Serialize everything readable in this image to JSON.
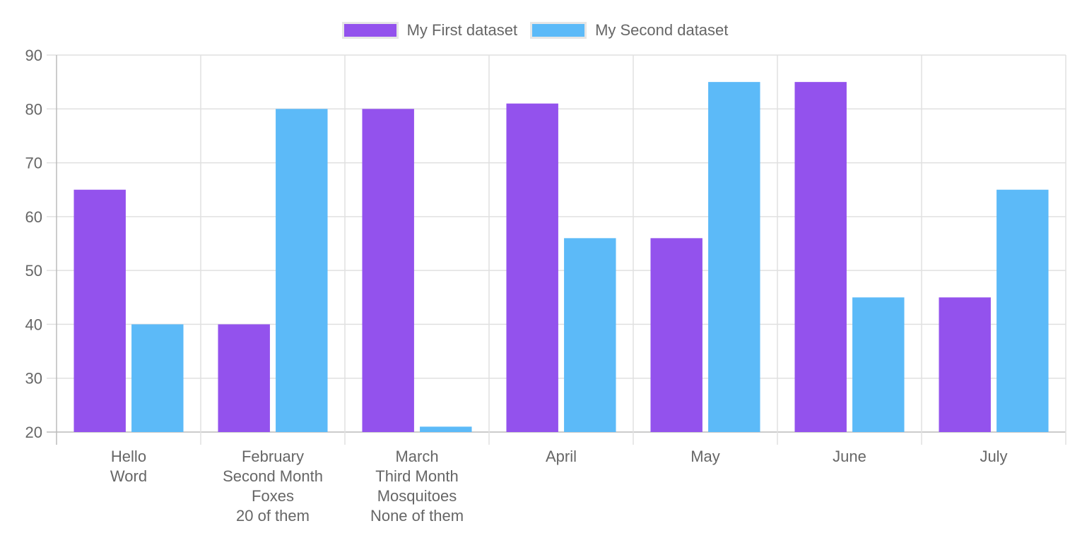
{
  "chart_data": {
    "type": "bar",
    "categories": [
      [
        "Hello",
        "Word"
      ],
      [
        "February",
        "Second Month",
        "Foxes",
        "20 of them"
      ],
      [
        "March",
        "Third Month",
        "Mosquitoes",
        "None of them"
      ],
      [
        "April"
      ],
      [
        "May"
      ],
      [
        "June"
      ],
      [
        "July"
      ]
    ],
    "series": [
      {
        "name": "My First dataset",
        "color": "#9352ed",
        "values": [
          65,
          40,
          80,
          81,
          56,
          85,
          45
        ]
      },
      {
        "name": "My Second dataset",
        "color": "#5cbaf8",
        "values": [
          40,
          80,
          21,
          56,
          85,
          45,
          65
        ]
      }
    ],
    "ylim": [
      20,
      90
    ],
    "yticks": [
      20,
      30,
      40,
      50,
      60,
      70,
      80,
      90
    ],
    "grid": true,
    "legend_position": "top-center"
  }
}
